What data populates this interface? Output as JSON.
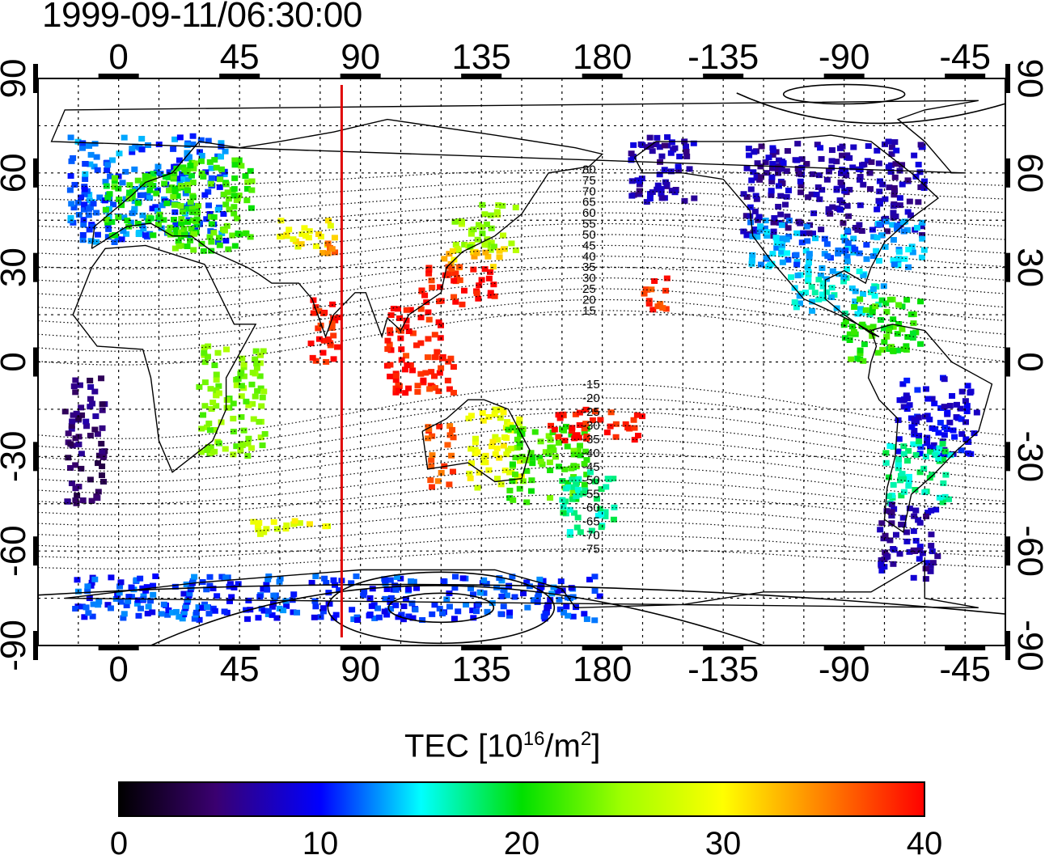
{
  "title": "1999-09-11/06:30:00",
  "colorbar": {
    "label_main": "TEC  [10",
    "label_exp": "16",
    "label_mid": "/m",
    "label_exp2": "2",
    "label_end": "]",
    "min": 0,
    "max": 40,
    "ticks": [
      "0",
      "10",
      "20",
      "30",
      "40"
    ]
  },
  "chart_data": {
    "type": "heatmap",
    "title": "1999-09-11/06:30:00",
    "x_axis": {
      "range": [
        -30,
        330
      ],
      "ticks_bottom": [
        "0",
        "45",
        "90",
        "135",
        "180",
        "-135",
        "-90",
        "-45"
      ],
      "ticks_top": [
        "0",
        "45",
        "90",
        "135",
        "180",
        "-135",
        "-90",
        "-45"
      ],
      "tick_values": [
        0,
        45,
        90,
        135,
        180,
        225,
        270,
        315
      ]
    },
    "y_axis": {
      "range": [
        -90,
        90
      ],
      "ticks": [
        "90",
        "60",
        "30",
        "0",
        "-30",
        "-60",
        "-90"
      ],
      "tick_values": [
        90,
        60,
        30,
        0,
        -30,
        -60,
        -90
      ]
    },
    "grid": "dotted",
    "marker_line_lon": 83,
    "contour_labels": [
      "80",
      "75",
      "70",
      "65",
      "60",
      "55",
      "50",
      "45",
      "40",
      "35",
      "30",
      "25",
      "20",
      "15",
      "-15",
      "-20",
      "-25",
      "-30",
      "-35",
      "-40",
      "-45",
      "-50",
      "-55",
      "-60",
      "-65",
      "-70",
      "-75"
    ],
    "tec_regions": [
      {
        "lon_min": -18,
        "lon_max": 40,
        "lat_min": 38,
        "lat_max": 72,
        "tec": 12
      },
      {
        "lon_min": -5,
        "lon_max": 30,
        "lat_min": 40,
        "lat_max": 60,
        "tec": 21
      },
      {
        "lon_min": 20,
        "lon_max": 50,
        "lat_min": 35,
        "lat_max": 65,
        "tec": 22
      },
      {
        "lon_min": 60,
        "lon_max": 82,
        "lat_min": 36,
        "lat_max": 45,
        "tec": 30
      },
      {
        "lon_min": 75,
        "lon_max": 82,
        "lat_min": 34,
        "lat_max": 38,
        "tec": 35
      },
      {
        "lon_min": 125,
        "lon_max": 148,
        "lat_min": 35,
        "lat_max": 50,
        "tec": 25
      },
      {
        "lon_min": 120,
        "lon_max": 145,
        "lat_min": 30,
        "lat_max": 36,
        "tec": 32
      },
      {
        "lon_min": 112,
        "lon_max": 140,
        "lat_min": 18,
        "lat_max": 31,
        "tec": 39
      },
      {
        "lon_min": 100,
        "lon_max": 125,
        "lat_min": -10,
        "lat_max": 18,
        "tec": 39
      },
      {
        "lon_min": 70,
        "lon_max": 82,
        "lat_min": 0,
        "lat_max": 20,
        "tec": 39
      },
      {
        "lon_min": 115,
        "lon_max": 125,
        "lat_min": -40,
        "lat_max": -20,
        "tec": 37
      },
      {
        "lon_min": 130,
        "lon_max": 150,
        "lat_min": -40,
        "lat_max": -15,
        "tec": 29
      },
      {
        "lon_min": 145,
        "lon_max": 175,
        "lat_min": -45,
        "lat_max": -20,
        "tec": 22
      },
      {
        "lon_min": 165,
        "lon_max": 185,
        "lat_min": -55,
        "lat_max": -35,
        "tec": 17
      },
      {
        "lon_min": 190,
        "lon_max": 215,
        "lat_min": 50,
        "lat_max": 72,
        "tec": 7
      },
      {
        "lon_min": 232,
        "lon_max": 300,
        "lat_min": 40,
        "lat_max": 70,
        "tec": 7
      },
      {
        "lon_min": 235,
        "lon_max": 300,
        "lat_min": 30,
        "lat_max": 45,
        "tec": 13
      },
      {
        "lon_min": 250,
        "lon_max": 285,
        "lat_min": 15,
        "lat_max": 30,
        "tec": 15
      },
      {
        "lon_min": 270,
        "lon_max": 300,
        "lat_min": 0,
        "lat_max": 20,
        "tec": 21
      },
      {
        "lon_min": 290,
        "lon_max": 320,
        "lat_min": -30,
        "lat_max": -5,
        "tec": 9
      },
      {
        "lon_min": 285,
        "lon_max": 310,
        "lat_min": -45,
        "lat_max": -25,
        "tec": 17
      },
      {
        "lon_min": 283,
        "lon_max": 305,
        "lat_min": -70,
        "lat_max": -45,
        "tec": 7
      },
      {
        "lon_min": -20,
        "lon_max": 180,
        "lat_min": -82,
        "lat_max": -68,
        "tec": 11
      },
      {
        "lon_min": 195,
        "lon_max": 205,
        "lat_min": 15,
        "lat_max": 28,
        "tec": 38
      },
      {
        "lon_min": 160,
        "lon_max": 195,
        "lat_min": -25,
        "lat_max": -15,
        "tec": 39
      },
      {
        "lon_min": 30,
        "lon_max": 55,
        "lat_min": -30,
        "lat_max": 5,
        "tec": 24
      },
      {
        "lon_min": 50,
        "lon_max": 80,
        "lat_min": -55,
        "lat_max": -50,
        "tec": 29
      },
      {
        "lon_min": -20,
        "lon_max": -5,
        "lat_min": -45,
        "lat_max": -5,
        "tec": 5
      }
    ]
  }
}
